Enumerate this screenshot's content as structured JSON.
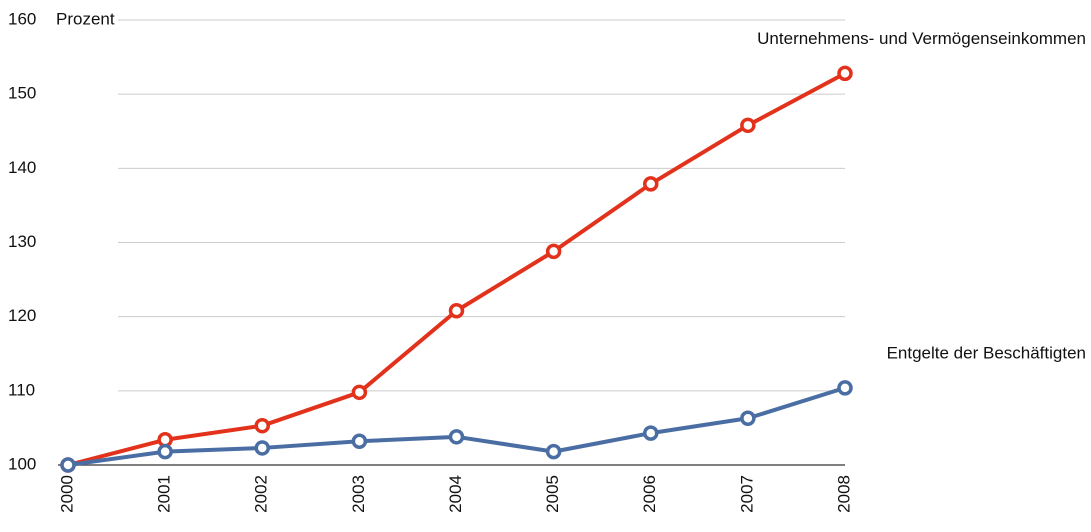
{
  "chart_data": {
    "type": "line",
    "y_axis_label": "Prozent",
    "categories": [
      "2000",
      "2001",
      "2002",
      "2003",
      "2004",
      "2005",
      "2006",
      "2007",
      "2008"
    ],
    "series": [
      {
        "name": "Unternehmens- und Vermögenseinkommen",
        "color": "#e3321c",
        "values": [
          100,
          103.4,
          105.3,
          109.8,
          120.8,
          128.8,
          137.9,
          145.8,
          152.8
        ]
      },
      {
        "name": "Entgelte der Beschäftigten",
        "color": "#4a6ea3",
        "values": [
          100,
          101.8,
          102.3,
          103.2,
          103.8,
          101.8,
          104.3,
          106.3,
          110.4
        ]
      }
    ],
    "ylim": [
      100,
      160
    ],
    "yticks": [
      100,
      110,
      120,
      130,
      140,
      150,
      160
    ],
    "grid": true
  }
}
